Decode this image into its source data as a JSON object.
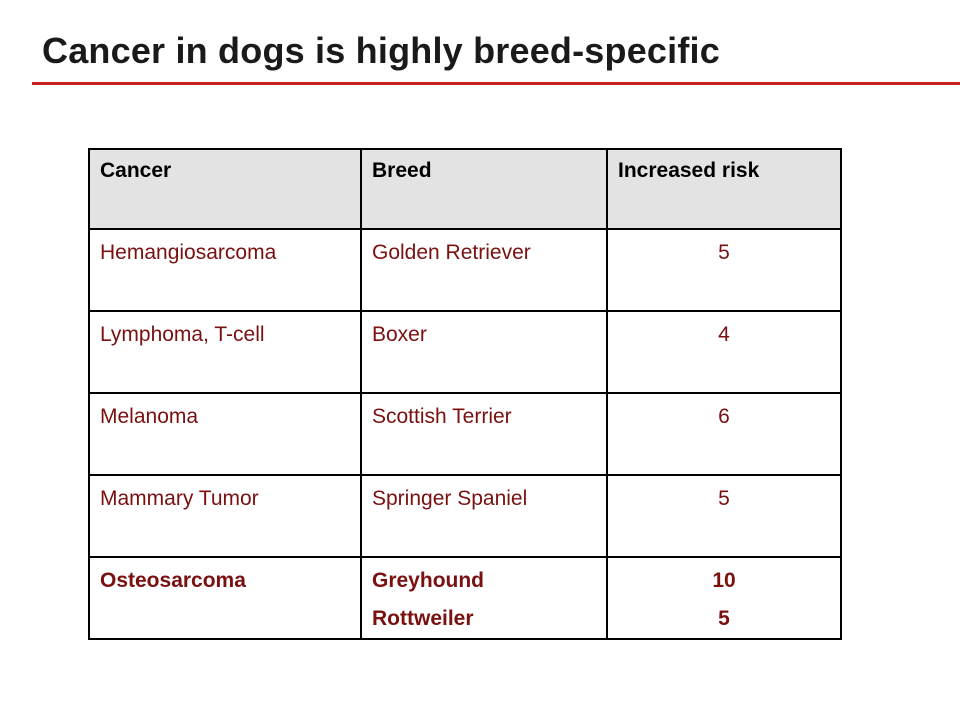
{
  "title": "Cancer in dogs is highly breed-specific",
  "colors": {
    "title_rule": "#c8201f",
    "cell_text": "#7a1010",
    "header_bg": "#e3e3e3"
  },
  "table": {
    "headers": [
      "Cancer",
      "Breed",
      "Increased risk"
    ],
    "rows": [
      {
        "cancer": "Hemangiosarcoma",
        "breeds": [
          "Golden Retriever"
        ],
        "risks": [
          "5"
        ]
      },
      {
        "cancer": "Lymphoma, T-cell",
        "breeds": [
          "Boxer"
        ],
        "risks": [
          "4"
        ]
      },
      {
        "cancer": "Melanoma",
        "breeds": [
          "Scottish Terrier"
        ],
        "risks": [
          "6"
        ]
      },
      {
        "cancer": "Mammary Tumor",
        "breeds": [
          "Springer Spaniel"
        ],
        "risks": [
          "5"
        ]
      },
      {
        "cancer": "Osteosarcoma",
        "breeds": [
          "Greyhound",
          "Rottweiler"
        ],
        "risks": [
          "10",
          "5"
        ]
      }
    ]
  }
}
